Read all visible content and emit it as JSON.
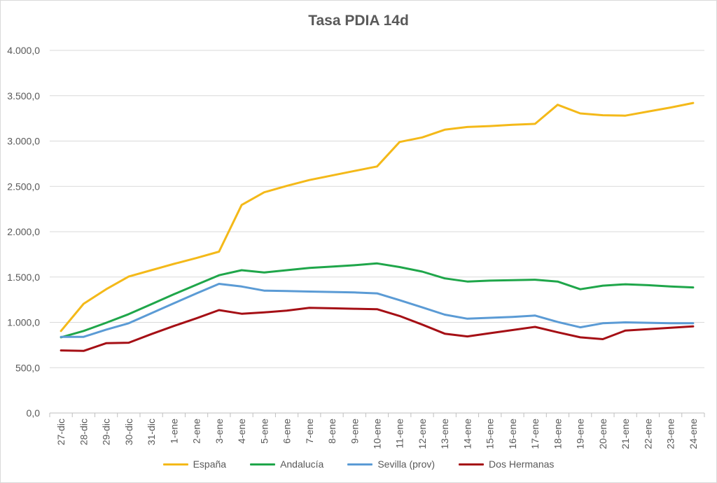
{
  "chart_data": {
    "type": "line",
    "title": "Tasa PDIA 14d",
    "xlabel": "",
    "ylabel": "",
    "ylim": [
      0,
      4000
    ],
    "yticks": [
      "0,0",
      "500,0",
      "1.000,0",
      "1.500,0",
      "2.000,0",
      "2.500,0",
      "3.000,0",
      "3.500,0",
      "4.000,0"
    ],
    "grid": true,
    "legend_position": "bottom",
    "categories": [
      "27-dic",
      "28-dic",
      "29-dic",
      "30-dic",
      "31-dic",
      "1-ene",
      "2-ene",
      "3-ene",
      "4-ene",
      "5-ene",
      "6-ene",
      "7-ene",
      "8-ene",
      "9-ene",
      "10-ene",
      "11-ene",
      "12-ene",
      "13-ene",
      "14-ene",
      "15-ene",
      "16-ene",
      "17-ene",
      "18-ene",
      "19-ene",
      "20-ene",
      "21-ene",
      "22-ene",
      "23-ene",
      "24-ene"
    ],
    "series": [
      {
        "name": "España",
        "color": "#f4b919",
        "values": [
          905,
          1205,
          1365,
          1505,
          1575,
          1645,
          1710,
          1780,
          2295,
          2435,
          2505,
          2570,
          2620,
          2670,
          2720,
          2990,
          3040,
          3125,
          3155,
          3165,
          3180,
          3190,
          3400,
          3305,
          3285,
          3280,
          3325,
          3370,
          3420
        ]
      },
      {
        "name": "Andalucía",
        "color": "#1fa64a",
        "values": [
          835,
          905,
          995,
          1090,
          1200,
          1310,
          1415,
          1520,
          1575,
          1550,
          1575,
          1600,
          1615,
          1630,
          1650,
          1610,
          1560,
          1485,
          1450,
          1460,
          1465,
          1470,
          1450,
          1365,
          1405,
          1420,
          1410,
          1395,
          1385
        ]
      },
      {
        "name": "Sevilla (prov)",
        "color": "#5b9bd5",
        "values": [
          840,
          840,
          920,
          990,
          1100,
          1210,
          1320,
          1425,
          1395,
          1350,
          1345,
          1340,
          1335,
          1330,
          1320,
          1245,
          1165,
          1085,
          1040,
          1050,
          1060,
          1075,
          1005,
          945,
          990,
          1000,
          995,
          990,
          990
        ]
      },
      {
        "name": "Dos Hermanas",
        "color": "#a50f15",
        "values": [
          690,
          685,
          770,
          775,
          870,
          960,
          1045,
          1135,
          1095,
          1110,
          1130,
          1160,
          1155,
          1150,
          1145,
          1070,
          975,
          875,
          845,
          880,
          915,
          950,
          890,
          835,
          815,
          910,
          925,
          940,
          955
        ]
      }
    ]
  }
}
